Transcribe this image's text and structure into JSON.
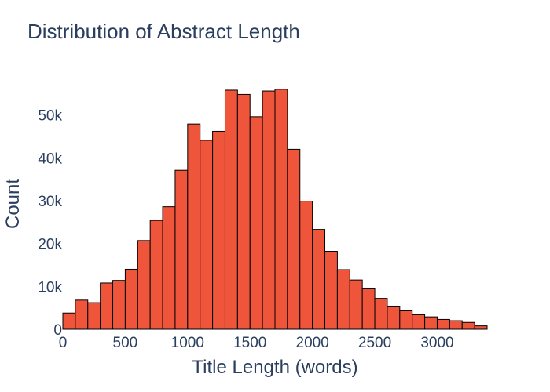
{
  "chart_data": {
    "type": "bar",
    "title": "Distribution of Abstract Length",
    "xlabel": "Title Length (words)",
    "ylabel": "Count",
    "bin_width": 100,
    "x": [
      0,
      100,
      200,
      300,
      400,
      500,
      600,
      700,
      800,
      900,
      1000,
      1100,
      1200,
      1300,
      1400,
      1500,
      1600,
      1700,
      1800,
      1900,
      2000,
      2100,
      2200,
      2300,
      2400,
      2500,
      2600,
      2700,
      2800,
      2900,
      3000,
      3100,
      3200,
      3300
    ],
    "values": [
      3800,
      6800,
      6200,
      10800,
      11400,
      14000,
      20700,
      25400,
      28600,
      37100,
      47900,
      44100,
      46200,
      55800,
      54800,
      49600,
      55600,
      56000,
      42000,
      29900,
      23300,
      18200,
      13900,
      11500,
      9600,
      7200,
      5400,
      4300,
      3400,
      2900,
      2300,
      2000,
      1600,
      800
    ],
    "xlim": [
      0,
      3400
    ],
    "ylim": [
      0,
      60000
    ],
    "x_ticks": [
      0,
      500,
      1000,
      1500,
      2000,
      2500,
      3000
    ],
    "x_tick_labels": [
      "0",
      "500",
      "1000",
      "1500",
      "2000",
      "2500",
      "3000"
    ],
    "y_ticks": [
      0,
      10000,
      20000,
      30000,
      40000,
      50000
    ],
    "y_tick_labels": [
      "0",
      "10k",
      "20k",
      "30k",
      "40k",
      "50k"
    ],
    "grid": false,
    "bar_color": "#ef553b",
    "bar_edge_color": "#000000"
  }
}
